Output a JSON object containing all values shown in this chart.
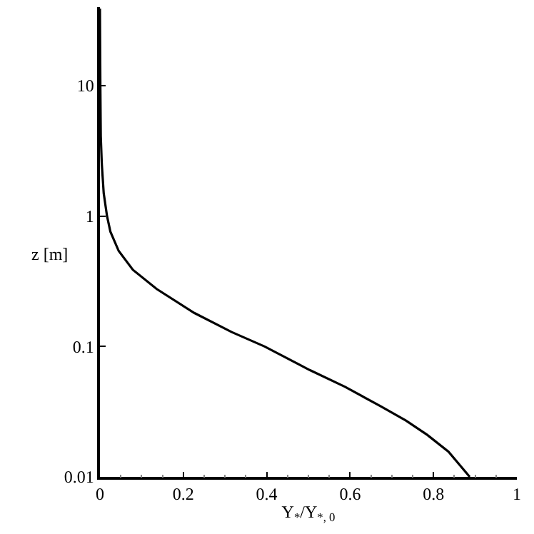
{
  "chart_data": {
    "type": "line",
    "xlabel": "Y$_{*}$/Y$_{*, 0}$",
    "ylabel": "z [m]",
    "log": "y",
    "x": [
      0.887,
      0.836,
      0.785,
      0.734,
      0.672,
      0.588,
      0.503,
      0.395,
      0.316,
      0.226,
      0.136,
      0.079,
      0.045,
      0.025,
      0.017,
      0.009,
      0.0045,
      0.002,
      0.001,
      0.0
    ],
    "series": [
      {
        "color": "#000000",
        "values": [
          0.01,
          0.0156,
          0.021,
          0.027,
          0.035,
          0.049,
          0.066,
          0.1,
          0.129,
          0.181,
          0.276,
          0.387,
          0.54,
          0.76,
          1.0,
          1.5,
          2.5,
          4.1,
          10,
          39
        ]
      }
    ],
    "xlim": [
      0,
      1
    ],
    "xticks": [
      0,
      0.2,
      0.4,
      0.6,
      0.8,
      1
    ],
    "ylim": [
      0.01,
      40
    ],
    "yticks": [
      0.01,
      0.1,
      1,
      10
    ],
    "marker": "none",
    "line_style": "solid"
  }
}
